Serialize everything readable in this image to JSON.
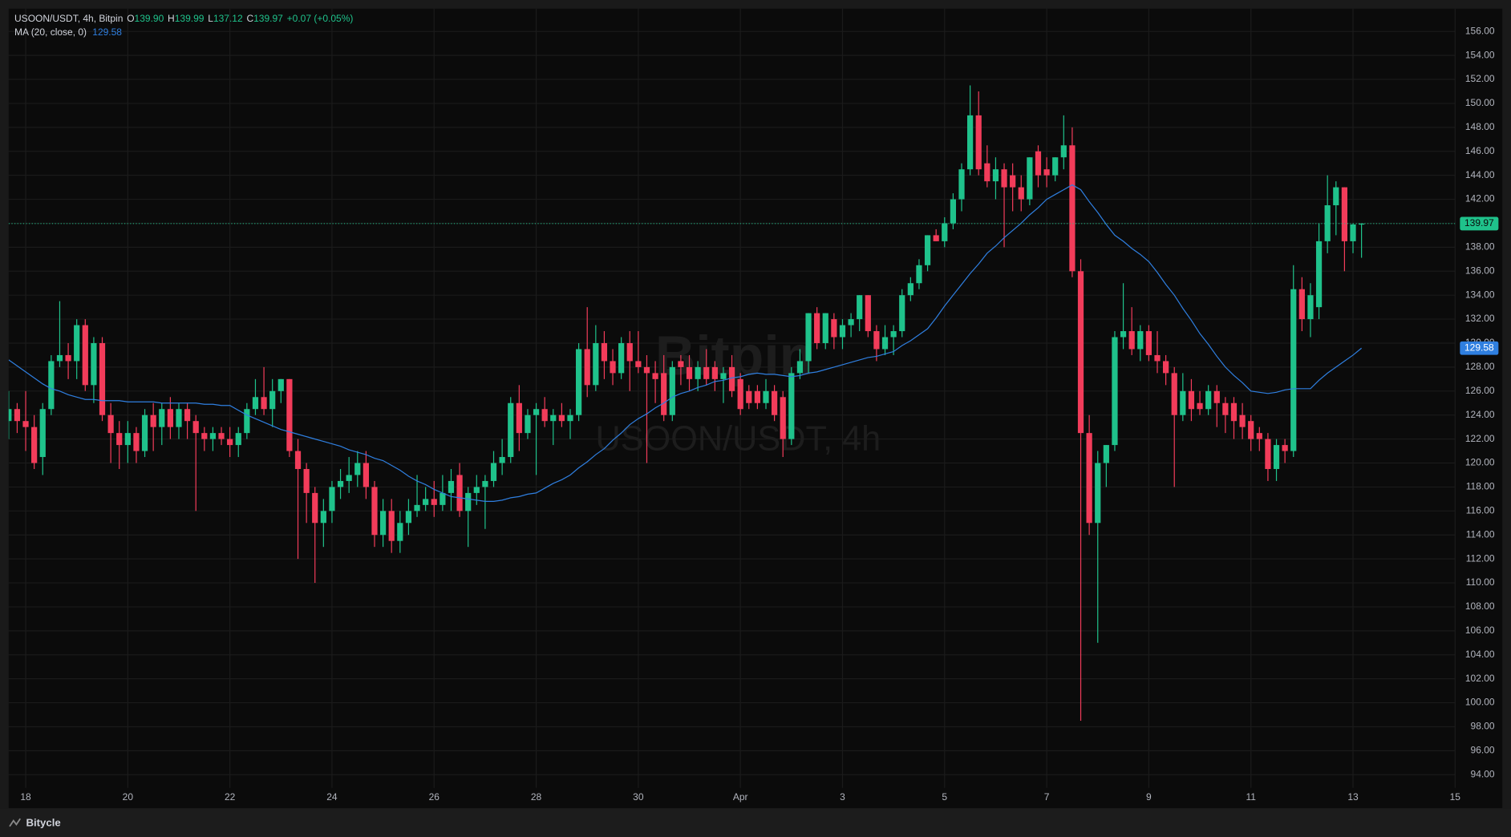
{
  "chart_data": {
    "type": "candlestick",
    "legend": {
      "symbol": "USOON/USDT, 4h, Bitpin",
      "open_label": "O",
      "open": "139.90",
      "high_label": "H",
      "high": "139.99",
      "low_label": "L",
      "low": "137.12",
      "close_label": "C",
      "close": "139.97",
      "change": "+0.07 (+0.05%)"
    },
    "watermark": {
      "title": "Bitpin",
      "subtitle": "USOON/USDT, 4h"
    },
    "footer": "Bitycle",
    "up_color": "#1fc28b",
    "down_color": "#f23c5a",
    "grid": true,
    "xlim": [
      0,
      170
    ],
    "xticks": [
      {
        "value": 2,
        "label": "18"
      },
      {
        "value": 14,
        "label": "20"
      },
      {
        "value": 26,
        "label": "22"
      },
      {
        "value": 38,
        "label": "24"
      },
      {
        "value": 50,
        "label": "26"
      },
      {
        "value": 62,
        "label": "28"
      },
      {
        "value": 74,
        "label": "30"
      },
      {
        "value": 86,
        "label": "Apr"
      },
      {
        "value": 98,
        "label": "3"
      },
      {
        "value": 110,
        "label": "5"
      },
      {
        "value": 122,
        "label": "7"
      },
      {
        "value": 134,
        "label": "9"
      },
      {
        "value": 146,
        "label": "11"
      },
      {
        "value": 158,
        "label": "13"
      },
      {
        "value": 170,
        "label": "15"
      }
    ],
    "ylim": [
      92.9,
      157.9
    ],
    "yticks": [
      {
        "value": 94,
        "label": "94.00"
      },
      {
        "value": 96,
        "label": "96.00"
      },
      {
        "value": 98,
        "label": "98.00"
      },
      {
        "value": 100,
        "label": "100.00"
      },
      {
        "value": 102,
        "label": "102.00"
      },
      {
        "value": 104,
        "label": "104.00"
      },
      {
        "value": 106,
        "label": "106.00"
      },
      {
        "value": 108,
        "label": "108.00"
      },
      {
        "value": 110,
        "label": "110.00"
      },
      {
        "value": 112,
        "label": "112.00"
      },
      {
        "value": 114,
        "label": "114.00"
      },
      {
        "value": 116,
        "label": "116.00"
      },
      {
        "value": 118,
        "label": "118.00"
      },
      {
        "value": 120,
        "label": "120.00"
      },
      {
        "value": 122,
        "label": "122.00"
      },
      {
        "value": 124,
        "label": "124.00"
      },
      {
        "value": 126,
        "label": "126.00"
      },
      {
        "value": 128,
        "label": "128.00"
      },
      {
        "value": 130,
        "label": "130.00"
      },
      {
        "value": 132,
        "label": "132.00"
      },
      {
        "value": 134,
        "label": "134.00"
      },
      {
        "value": 136,
        "label": "136.00"
      },
      {
        "value": 138,
        "label": "138.00"
      },
      {
        "value": 140,
        "label": "140.00"
      },
      {
        "value": 142,
        "label": "142.00"
      },
      {
        "value": 144,
        "label": "144.00"
      },
      {
        "value": 146,
        "label": "146.00"
      },
      {
        "value": 148,
        "label": "148.00"
      },
      {
        "value": 150,
        "label": "150.00"
      },
      {
        "value": 152,
        "label": "152.00"
      },
      {
        "value": 154,
        "label": "154.00"
      },
      {
        "value": 156,
        "label": "156.00"
      }
    ],
    "ohlc": [
      [
        123.5,
        126,
        122,
        124.5
      ],
      [
        124.5,
        125,
        122.5,
        123.5
      ],
      [
        123.5,
        126,
        121,
        123
      ],
      [
        123,
        124,
        119.5,
        120
      ],
      [
        120.5,
        125,
        119,
        124.5
      ],
      [
        124.5,
        129,
        124,
        128.5
      ],
      [
        128.5,
        133.5,
        128,
        129
      ],
      [
        129,
        130,
        127,
        128.5
      ],
      [
        128.5,
        132,
        127,
        131.5
      ],
      [
        131.5,
        132,
        126,
        126.5
      ],
      [
        126.5,
        130.5,
        125,
        130
      ],
      [
        130,
        130.5,
        123.5,
        124
      ],
      [
        124,
        125,
        120,
        122.5
      ],
      [
        122.5,
        123.5,
        119.5,
        121.5
      ],
      [
        121.5,
        123.5,
        120,
        122.5
      ],
      [
        122.5,
        123,
        120,
        121
      ],
      [
        121,
        124.5,
        120.5,
        124
      ],
      [
        124,
        125,
        121,
        123
      ],
      [
        123,
        125,
        121.5,
        124.5
      ],
      [
        124.5,
        125.5,
        122,
        123
      ],
      [
        123,
        125,
        122,
        124.5
      ],
      [
        124.5,
        125,
        122,
        123.5
      ],
      [
        123.5,
        124,
        116,
        122.5
      ],
      [
        122.5,
        123,
        121,
        122
      ],
      [
        122,
        123,
        121,
        122.5
      ],
      [
        122.5,
        123,
        121.5,
        122
      ],
      [
        122,
        123,
        120.5,
        121.5
      ],
      [
        121.5,
        123,
        120.5,
        122.5
      ],
      [
        122.5,
        125,
        122,
        124.5
      ],
      [
        124.5,
        127,
        124,
        125.5
      ],
      [
        125.5,
        128,
        124,
        124.5
      ],
      [
        124.5,
        127,
        123,
        126
      ],
      [
        126,
        127,
        125,
        127
      ],
      [
        127,
        127,
        120.5,
        121
      ],
      [
        121,
        122,
        112,
        119.5
      ],
      [
        119.5,
        120,
        115,
        117.5
      ],
      [
        117.5,
        118,
        110,
        115
      ],
      [
        115,
        117,
        113,
        116
      ],
      [
        116,
        118.5,
        115,
        118
      ],
      [
        118,
        119.5,
        117,
        118.5
      ],
      [
        118.5,
        120.5,
        117.5,
        119
      ],
      [
        119,
        121,
        118,
        120
      ],
      [
        120,
        121,
        117,
        118
      ],
      [
        118,
        118.5,
        113,
        114
      ],
      [
        114,
        117,
        113,
        116
      ],
      [
        116,
        117,
        112.5,
        113.5
      ],
      [
        113.5,
        116,
        112.5,
        115
      ],
      [
        115,
        117,
        114,
        116
      ],
      [
        116,
        119,
        115.5,
        116.5
      ],
      [
        116.5,
        118,
        116,
        117
      ],
      [
        117,
        118.5,
        115.5,
        116.5
      ],
      [
        116.5,
        119,
        116,
        117.5
      ],
      [
        117.5,
        119.5,
        116,
        118.5
      ],
      [
        119,
        120,
        115.5,
        116
      ],
      [
        116,
        118,
        113,
        117.5
      ],
      [
        117.5,
        119,
        116.5,
        118
      ],
      [
        118,
        119,
        114.5,
        118.5
      ],
      [
        118.5,
        121,
        118,
        120
      ],
      [
        120,
        122,
        119,
        120.5
      ],
      [
        120.5,
        125.5,
        120,
        125
      ],
      [
        125,
        126.5,
        121,
        122.5
      ],
      [
        122.5,
        124.5,
        122,
        124
      ],
      [
        124,
        125,
        119,
        124.5
      ],
      [
        124.5,
        125.5,
        123,
        123.5
      ],
      [
        123.5,
        124.5,
        121.5,
        124
      ],
      [
        124,
        125,
        123,
        123.5
      ],
      [
        123.5,
        124.5,
        122,
        124
      ],
      [
        124,
        130,
        123.5,
        129.5
      ],
      [
        129.5,
        133,
        125.5,
        126.5
      ],
      [
        126.5,
        131.5,
        126,
        130
      ],
      [
        130,
        131,
        127,
        128.5
      ],
      [
        128.5,
        129.5,
        126.5,
        127.5
      ],
      [
        127.5,
        130.5,
        127,
        130
      ],
      [
        130,
        131,
        126,
        128.5
      ],
      [
        128.5,
        131,
        127.5,
        128
      ],
      [
        128,
        129,
        120,
        127.5
      ],
      [
        127.5,
        128.5,
        125,
        127
      ],
      [
        127.5,
        129,
        123.5,
        124
      ],
      [
        124,
        128.5,
        123.5,
        128
      ],
      [
        128.5,
        129,
        126.5,
        128
      ],
      [
        128,
        129,
        126,
        127
      ],
      [
        127,
        128.5,
        126,
        128
      ],
      [
        128,
        129.5,
        126.5,
        127
      ],
      [
        128,
        128.5,
        126,
        127
      ],
      [
        127,
        128,
        125,
        127.5
      ],
      [
        128,
        129,
        125.5,
        126
      ],
      [
        127,
        127.5,
        124,
        124.5
      ],
      [
        126,
        126.5,
        124.5,
        125
      ],
      [
        126,
        126.5,
        124.5,
        125
      ],
      [
        125,
        127,
        124.5,
        126
      ],
      [
        126,
        126.5,
        123.5,
        124
      ],
      [
        125.5,
        126,
        120.5,
        122
      ],
      [
        122,
        128,
        121.5,
        127.5
      ],
      [
        127.5,
        129.5,
        127,
        128.5
      ],
      [
        128.5,
        132.5,
        127.5,
        132.5
      ],
      [
        132.5,
        133,
        129.5,
        130
      ],
      [
        130,
        132.5,
        129.5,
        132.5
      ],
      [
        132,
        132.5,
        129.5,
        130.5
      ],
      [
        130.5,
        132,
        129.5,
        131.5
      ],
      [
        131.5,
        132.5,
        130.5,
        132
      ],
      [
        132,
        134,
        131,
        134
      ],
      [
        134,
        134,
        130.5,
        131
      ],
      [
        131,
        131.5,
        128.5,
        129.5
      ],
      [
        129.5,
        131.5,
        129,
        130.5
      ],
      [
        130.5,
        131.5,
        129,
        131
      ],
      [
        131,
        134.5,
        130.5,
        134
      ],
      [
        134,
        135.5,
        133.5,
        135
      ],
      [
        135,
        137,
        134.5,
        136.5
      ],
      [
        136.5,
        139,
        136,
        139
      ],
      [
        139,
        139.5,
        138.5,
        138.5
      ],
      [
        138.5,
        140.5,
        138,
        140
      ],
      [
        140,
        142.5,
        139.5,
        142
      ],
      [
        142,
        145,
        141,
        144.5
      ],
      [
        144.5,
        151.5,
        144,
        149
      ],
      [
        149,
        151,
        144,
        144.5
      ],
      [
        145,
        146.5,
        143,
        143.5
      ],
      [
        143.5,
        145.5,
        142,
        144.5
      ],
      [
        144.5,
        145,
        138,
        143
      ],
      [
        144,
        145,
        141,
        143
      ],
      [
        143,
        144,
        141,
        142
      ],
      [
        142,
        145.5,
        141.5,
        145.5
      ],
      [
        146,
        146.5,
        143,
        144
      ],
      [
        144.5,
        145.5,
        143,
        144
      ],
      [
        144,
        145.5,
        143.5,
        145.5
      ],
      [
        145.5,
        149,
        144.5,
        146.5
      ],
      [
        146.5,
        148,
        135.5,
        136
      ],
      [
        136,
        137,
        98.5,
        122.5
      ],
      [
        122.5,
        124,
        114,
        115
      ],
      [
        115,
        121,
        105,
        120
      ],
      [
        120,
        121.5,
        118,
        121.5
      ],
      [
        121.5,
        131,
        121,
        130.5
      ],
      [
        130.5,
        135,
        129.5,
        131
      ],
      [
        131,
        133,
        129,
        129.5
      ],
      [
        129.5,
        131.5,
        128.5,
        131
      ],
      [
        131,
        131.5,
        128.5,
        129
      ],
      [
        129,
        131,
        127.5,
        128.5
      ],
      [
        128.5,
        129,
        126.5,
        127.5
      ],
      [
        127.5,
        128,
        118,
        124
      ],
      [
        124,
        127.5,
        123.5,
        126
      ],
      [
        126,
        127,
        123.5,
        124.5
      ],
      [
        125,
        126,
        124,
        124.5
      ],
      [
        124.5,
        126.5,
        124,
        126
      ],
      [
        126,
        126.5,
        123,
        125
      ],
      [
        125,
        125.5,
        122.5,
        124
      ],
      [
        125,
        125.5,
        122,
        123.5
      ],
      [
        124,
        125,
        122,
        123
      ],
      [
        123.5,
        124,
        121,
        122
      ],
      [
        122.5,
        123,
        121,
        122
      ],
      [
        122,
        122.5,
        118.5,
        119.5
      ],
      [
        119.5,
        122,
        118.5,
        121.5
      ],
      [
        121.5,
        122,
        120,
        121
      ],
      [
        121,
        136.5,
        120.5,
        134.5
      ],
      [
        134.5,
        135.5,
        131,
        132
      ],
      [
        132,
        135,
        130.5,
        134
      ],
      [
        133,
        140,
        132,
        138.5
      ],
      [
        138.5,
        144,
        137.5,
        141.5
      ],
      [
        141.5,
        143.5,
        139,
        143
      ],
      [
        143,
        143,
        136,
        138.5
      ],
      [
        138.5,
        140,
        137.5,
        139.9
      ],
      [
        139.9,
        139.99,
        137.12,
        139.97
      ]
    ],
    "ma": {
      "name": "MA (20, close, 0)",
      "color": "#2f7fe0",
      "values": [
        128.6,
        128.1,
        127.6,
        127.1,
        126.6,
        126.2,
        126.0,
        125.7,
        125.5,
        125.3,
        125.3,
        125.2,
        125.2,
        125.2,
        125.1,
        125.1,
        125.1,
        125.1,
        125.0,
        125.0,
        125.0,
        125.0,
        125.0,
        124.9,
        124.9,
        124.8,
        124.8,
        124.4,
        124.0,
        123.7,
        123.4,
        123.1,
        122.8,
        122.6,
        122.4,
        122.2,
        122.0,
        121.8,
        121.6,
        121.4,
        121.1,
        120.9,
        120.7,
        120.4,
        120.2,
        119.8,
        119.4,
        118.9,
        118.5,
        118.2,
        117.8,
        117.5,
        117.2,
        117.1,
        117.0,
        116.9,
        116.8,
        116.8,
        116.9,
        117.1,
        117.2,
        117.4,
        117.5,
        117.9,
        118.3,
        118.6,
        119.0,
        119.6,
        120.1,
        120.7,
        121.2,
        121.9,
        122.5,
        123.2,
        123.7,
        124.1,
        124.6,
        125.0,
        125.5,
        125.8,
        126.0,
        126.3,
        126.5,
        126.8,
        126.9,
        127.1,
        127.2,
        127.4,
        127.5,
        127.4,
        127.4,
        127.3,
        127.2,
        127.3,
        127.5,
        127.6,
        127.8,
        128.0,
        128.2,
        128.4,
        128.6,
        128.8,
        128.9,
        129.1,
        129.3,
        129.8,
        130.2,
        130.7,
        131.2,
        132.1,
        133.1,
        134.0,
        134.9,
        135.8,
        136.6,
        137.5,
        138.1,
        138.8,
        139.4,
        140.0,
        140.7,
        141.3,
        142.0,
        142.4,
        142.8,
        143.2,
        142.8,
        141.8,
        140.9,
        139.9,
        139.0,
        138.5,
        137.9,
        137.4,
        136.8,
        135.9,
        134.9,
        134.0,
        132.9,
        131.9,
        130.8,
        129.9,
        128.9,
        128.0,
        127.3,
        126.7,
        126.0,
        125.9,
        125.8,
        125.9,
        126.1,
        126.2,
        126.2,
        126.2,
        126.9,
        127.5,
        128.0,
        128.5,
        129.0,
        129.58
      ]
    }
  }
}
